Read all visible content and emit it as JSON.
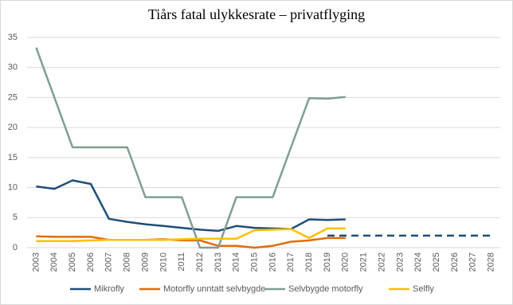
{
  "chart_data": {
    "type": "line",
    "title": "Tiårs fatal ulykkesrate – privatflyging",
    "categories": [
      "2003",
      "2004",
      "2005",
      "2006",
      "2007",
      "2008",
      "2009",
      "2010",
      "2011",
      "2012",
      "2013",
      "2014",
      "2015",
      "2016",
      "2017",
      "2018",
      "2019",
      "2020",
      "2021",
      "2022",
      "2023",
      "2024",
      "2025",
      "2026",
      "2027",
      "2028"
    ],
    "ylim": [
      0,
      35
    ],
    "yticks": [
      0,
      5,
      10,
      15,
      20,
      25,
      30,
      35
    ],
    "grid": true,
    "legend": "bottom",
    "series": [
      {
        "name": "Mikrofly",
        "color": "#1f4e79",
        "values": [
          10.2,
          9.8,
          11.2,
          10.6,
          4.8,
          4.3,
          3.9,
          3.6,
          3.3,
          3.0,
          2.8,
          3.6,
          3.3,
          3.2,
          3.1,
          4.7,
          4.6,
          4.7,
          null,
          null,
          null,
          null,
          null,
          null,
          null,
          null
        ]
      },
      {
        "name": "Motorfly unntatt selvbygde",
        "color": "#e36c09",
        "values": [
          1.9,
          1.8,
          1.8,
          1.8,
          1.3,
          1.3,
          1.3,
          1.4,
          1.2,
          1.2,
          0.3,
          0.3,
          0.0,
          0.3,
          1.0,
          1.2,
          1.6,
          1.6,
          null,
          null,
          null,
          null,
          null,
          null,
          null,
          null
        ]
      },
      {
        "name": "Selvbygde motorfly",
        "color": "#7f9f8f",
        "values": [
          33.3,
          25.0,
          16.7,
          16.7,
          16.7,
          16.7,
          8.4,
          8.4,
          8.4,
          0.0,
          0.0,
          8.4,
          8.4,
          8.4,
          16.7,
          24.9,
          24.8,
          25.1,
          null,
          null,
          null,
          null,
          null,
          null,
          null,
          null
        ]
      },
      {
        "name": "Selfly",
        "color": "#ffc000",
        "values": [
          1.1,
          1.1,
          1.1,
          1.2,
          1.3,
          1.3,
          1.3,
          1.3,
          1.4,
          1.5,
          1.5,
          1.5,
          2.9,
          3.0,
          3.1,
          1.6,
          3.2,
          3.2,
          null,
          null,
          null,
          null,
          null,
          null,
          null,
          null
        ]
      },
      {
        "color": "#1f4e79",
        "dashed": true,
        "values": [
          null,
          null,
          null,
          null,
          null,
          null,
          null,
          null,
          null,
          null,
          null,
          null,
          null,
          null,
          null,
          null,
          2.0,
          2.0,
          2.0,
          2.0,
          2.0,
          2.0,
          2.0,
          2.0,
          2.0,
          2.0
        ]
      }
    ]
  }
}
